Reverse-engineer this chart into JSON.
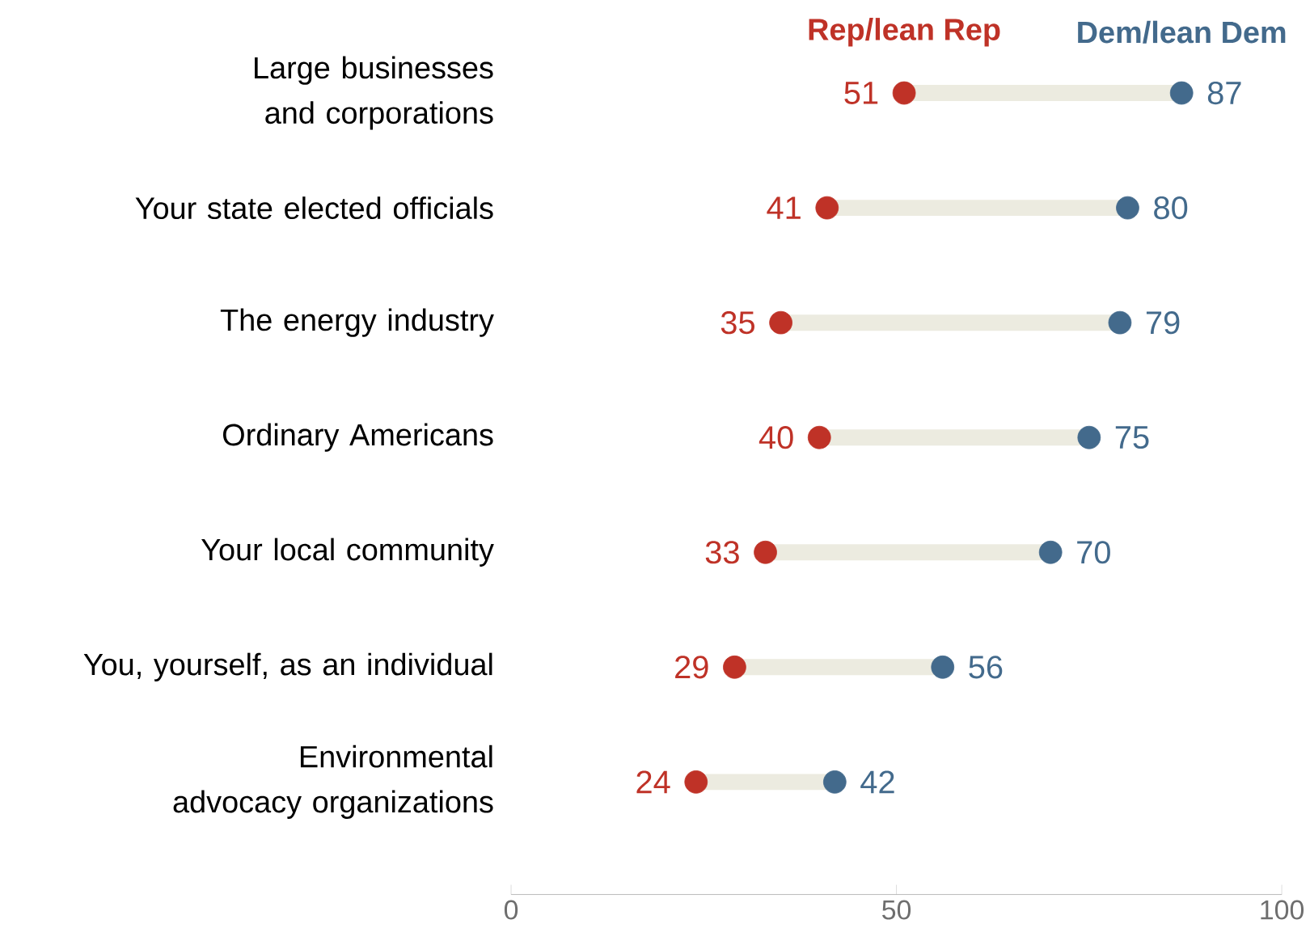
{
  "chart_data": {
    "type": "scatter",
    "orientation": "horizontal",
    "categories": [
      "Large businesses and corporations",
      "Your state elected officials",
      "The energy industry",
      "Ordinary Americans",
      "Your local community",
      "You, yourself, as an individual",
      "Environmental advocacy organizations"
    ],
    "series": [
      {
        "name": "Rep/lean Rep",
        "color": "#bf3227",
        "values": [
          51,
          41,
          35,
          40,
          33,
          29,
          24
        ]
      },
      {
        "name": "Dem/lean Dem",
        "color": "#436a8c",
        "values": [
          87,
          80,
          79,
          75,
          70,
          56,
          42
        ]
      }
    ],
    "xlim": [
      0,
      100
    ],
    "xticks": [
      0,
      50,
      100
    ],
    "data_labels": true,
    "grid": false
  }
}
